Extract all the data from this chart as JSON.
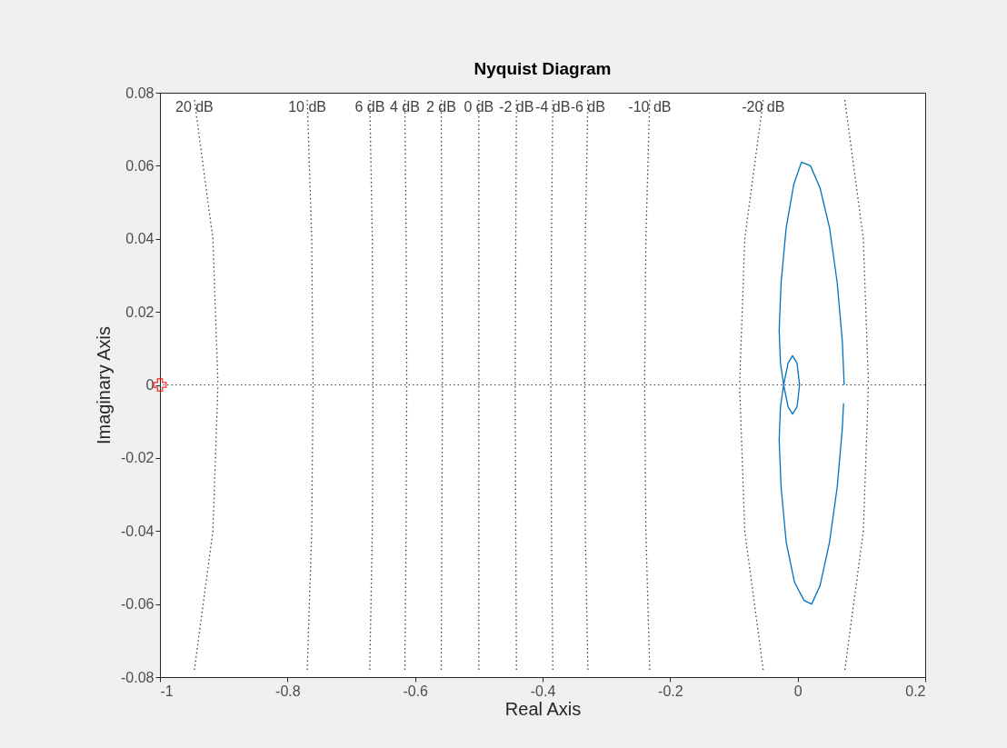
{
  "chart_data": {
    "type": "line",
    "title": "Nyquist Diagram",
    "xlabel": "Real Axis",
    "ylabel": "Imaginary Axis",
    "xlim": [
      -1,
      0.2
    ],
    "xticks": [
      -1,
      -0.8,
      -0.6,
      -0.4,
      -0.2,
      0,
      0.2
    ],
    "ylim": [
      -0.08,
      0.08
    ],
    "yticks": [
      -0.08,
      -0.06,
      -0.04,
      -0.02,
      0,
      0.02,
      0.04,
      0.06,
      0.08
    ],
    "grid": false,
    "legend": false,
    "ref_lines": [
      {
        "axis": "y",
        "value": 0,
        "color": "#404040",
        "line_style": "dotted"
      }
    ],
    "series": [
      {
        "name": "20 dB",
        "color": "#404040",
        "line_style": "dotted",
        "x": [
          -0.946,
          -0.917,
          -0.909,
          -0.917,
          -0.946
        ],
        "values": [
          0.078,
          0.04,
          0,
          -0.04,
          -0.078
        ]
      },
      {
        "name": "10 dB",
        "color": "#404040",
        "line_style": "dotted",
        "x": [
          -0.769,
          -0.762,
          -0.76,
          -0.762,
          -0.769
        ],
        "values": [
          0.078,
          0.04,
          0,
          -0.04,
          -0.078
        ]
      },
      {
        "name": "6 dB",
        "color": "#404040",
        "line_style": "dotted",
        "x": [
          -0.671,
          -0.667,
          -0.666,
          -0.667,
          -0.671
        ],
        "values": [
          0.078,
          0.04,
          0,
          -0.04,
          -0.078
        ]
      },
      {
        "name": "4 dB",
        "color": "#404040",
        "line_style": "dotted",
        "x": [
          -0.616,
          -0.614,
          -0.613,
          -0.614,
          -0.616
        ],
        "values": [
          0.078,
          0.04,
          0,
          -0.04,
          -0.078
        ]
      },
      {
        "name": "2 dB",
        "color": "#404040",
        "line_style": "dotted",
        "x": [
          -0.559,
          -0.558,
          -0.557,
          -0.558,
          -0.559
        ],
        "values": [
          0.078,
          0.04,
          0,
          -0.04,
          -0.078
        ]
      },
      {
        "name": "0 dB",
        "color": "#404040",
        "line_style": "dotted",
        "x": [
          -0.5,
          -0.5,
          -0.5,
          -0.5,
          -0.5
        ],
        "values": [
          0.078,
          0.04,
          0,
          -0.04,
          -0.078
        ]
      },
      {
        "name": "-2 dB",
        "color": "#404040",
        "line_style": "dotted",
        "x": [
          -0.441,
          -0.442,
          -0.443,
          -0.442,
          -0.441
        ],
        "values": [
          0.078,
          0.04,
          0,
          -0.04,
          -0.078
        ]
      },
      {
        "name": "-4 dB",
        "color": "#404040",
        "line_style": "dotted",
        "x": [
          -0.384,
          -0.386,
          -0.387,
          -0.386,
          -0.384
        ],
        "values": [
          0.078,
          0.04,
          0,
          -0.04,
          -0.078
        ]
      },
      {
        "name": "-6 dB",
        "color": "#404040",
        "line_style": "dotted",
        "x": [
          -0.329,
          -0.333,
          -0.334,
          -0.333,
          -0.329
        ],
        "values": [
          0.078,
          0.04,
          0,
          -0.04,
          -0.078
        ]
      },
      {
        "name": "-10 dB",
        "color": "#404040",
        "line_style": "dotted",
        "x": [
          -0.232,
          -0.238,
          -0.24,
          -0.238,
          -0.232
        ],
        "values": [
          0.078,
          0.04,
          0,
          -0.04,
          -0.078
        ]
      },
      {
        "name": "-20 dB",
        "color": "#404040",
        "line_style": "dotted",
        "x": [
          -0.054,
          -0.083,
          -0.091,
          -0.083,
          -0.054,
          null,
          0.074,
          0.103,
          0.111,
          0.103,
          0.074
        ],
        "values": [
          0.078,
          0.04,
          0,
          -0.04,
          -0.078,
          null,
          0.078,
          0.04,
          0,
          -0.04,
          -0.078
        ]
      },
      {
        "color": "#0072bd",
        "line_style": "solid",
        "x": [
          0.073,
          0.07,
          0.062,
          0.05,
          0.035,
          0.02,
          0.006,
          -0.006,
          -0.018,
          -0.026,
          -0.029,
          -0.027,
          -0.022,
          -0.015,
          -0.008,
          -0.001,
          0.003,
          -0.001,
          -0.008,
          -0.015,
          -0.022,
          -0.027,
          -0.029,
          -0.026,
          -0.018,
          -0.005,
          0.01,
          0.022,
          0.035,
          0.05,
          0.062,
          0.07,
          0.072
        ],
        "values": [
          0,
          0.012,
          0.028,
          0.043,
          0.054,
          0.06,
          0.061,
          0.055,
          0.043,
          0.028,
          0.015,
          0.006,
          0,
          -0.006,
          -0.008,
          -0.006,
          0,
          0.006,
          0.008,
          0.006,
          0,
          -0.006,
          -0.015,
          -0.028,
          -0.043,
          -0.054,
          -0.059,
          -0.06,
          -0.055,
          -0.043,
          -0.028,
          -0.012,
          -0.005
        ]
      },
      {
        "type": "scatter",
        "marker": "cross",
        "color": "#ff0000",
        "x": [
          -1
        ],
        "values": [
          0
        ]
      }
    ]
  }
}
